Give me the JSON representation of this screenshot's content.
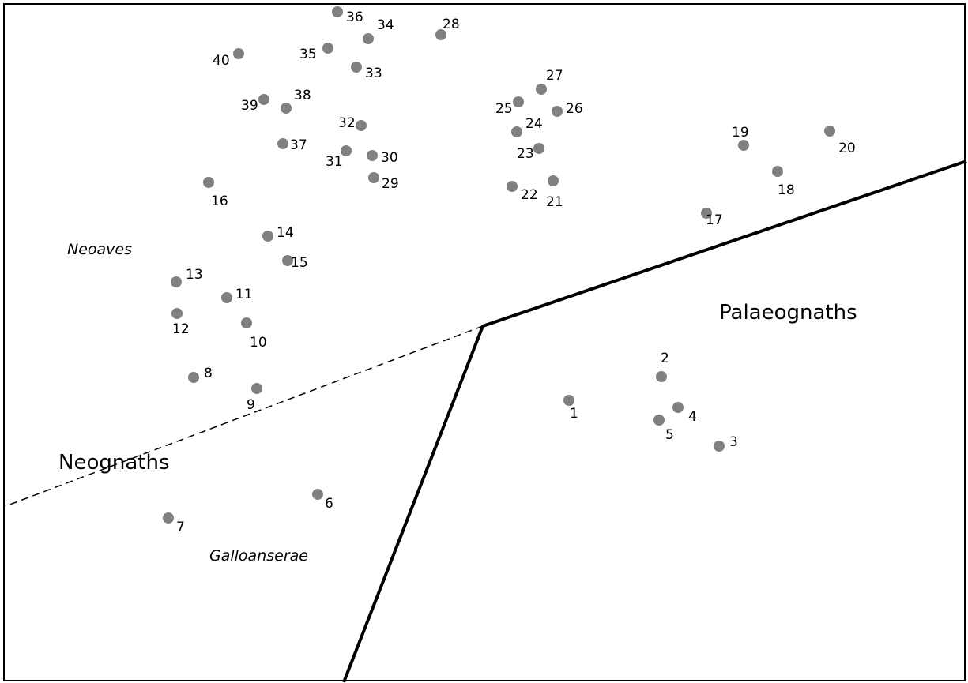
{
  "diagram": {
    "regions": [
      {
        "key": "palaeognaths",
        "label": "Palaeognaths",
        "style": "regular"
      },
      {
        "key": "neognaths",
        "label": "Neognaths",
        "style": "regular"
      },
      {
        "key": "neoaves",
        "label": "Neoaves",
        "style": "italic"
      },
      {
        "key": "galloanserae",
        "label": "Galloanserae",
        "style": "italic"
      }
    ],
    "boundaries": [
      {
        "name": "palaeognath-boundary",
        "style": "solid"
      },
      {
        "name": "neoaves-galloanserae-boundary",
        "style": "dashed"
      }
    ],
    "points": [
      {
        "id": "1",
        "label": "1"
      },
      {
        "id": "2",
        "label": "2"
      },
      {
        "id": "3",
        "label": "3"
      },
      {
        "id": "4",
        "label": "4"
      },
      {
        "id": "5",
        "label": "5"
      },
      {
        "id": "6",
        "label": "6"
      },
      {
        "id": "7",
        "label": "7"
      },
      {
        "id": "8",
        "label": "8"
      },
      {
        "id": "9",
        "label": "9"
      },
      {
        "id": "10",
        "label": "10"
      },
      {
        "id": "11",
        "label": "11"
      },
      {
        "id": "12",
        "label": "12"
      },
      {
        "id": "13",
        "label": "13"
      },
      {
        "id": "14",
        "label": "14"
      },
      {
        "id": "15",
        "label": "15"
      },
      {
        "id": "16",
        "label": "16"
      },
      {
        "id": "17",
        "label": "17"
      },
      {
        "id": "18",
        "label": "18"
      },
      {
        "id": "19",
        "label": "19"
      },
      {
        "id": "20",
        "label": "20"
      },
      {
        "id": "21",
        "label": "21"
      },
      {
        "id": "22",
        "label": "22"
      },
      {
        "id": "23",
        "label": "23"
      },
      {
        "id": "24",
        "label": "24"
      },
      {
        "id": "25",
        "label": "25"
      },
      {
        "id": "26",
        "label": "26"
      },
      {
        "id": "27",
        "label": "27"
      },
      {
        "id": "28",
        "label": "28"
      },
      {
        "id": "29",
        "label": "29"
      },
      {
        "id": "30",
        "label": "30"
      },
      {
        "id": "31",
        "label": "31"
      },
      {
        "id": "32",
        "label": "32"
      },
      {
        "id": "33",
        "label": "33"
      },
      {
        "id": "34",
        "label": "34"
      },
      {
        "id": "35",
        "label": "35"
      },
      {
        "id": "36",
        "label": "36"
      },
      {
        "id": "37",
        "label": "37"
      },
      {
        "id": "38",
        "label": "38"
      },
      {
        "id": "39",
        "label": "39"
      },
      {
        "id": "40",
        "label": "40"
      }
    ],
    "colors": {
      "point": "#808080",
      "line": "#000000",
      "background": "#ffffff"
    }
  }
}
